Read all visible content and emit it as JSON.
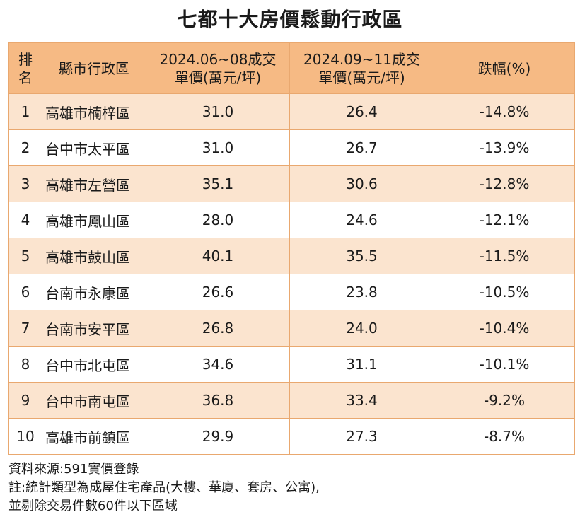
{
  "title": "七都十大房價鬆動行政區",
  "table": {
    "headers": {
      "rank_line1": "排",
      "rank_line2": "名",
      "district": "縣市行政區",
      "period1_line1": "2024.06~08成交",
      "period1_line2": "單價(萬元/坪)",
      "period2_line1": "2024.09~11成交",
      "period2_line2": "單價(萬元/坪)",
      "change": "跌幅(%)"
    },
    "rows": [
      {
        "rank": "1",
        "district": "高雄市楠梓區",
        "price1": "31.0",
        "price2": "26.4",
        "change": "-14.8%"
      },
      {
        "rank": "2",
        "district": "台中市太平區",
        "price1": "31.0",
        "price2": "26.7",
        "change": "-13.9%"
      },
      {
        "rank": "3",
        "district": "高雄市左營區",
        "price1": "35.1",
        "price2": "30.6",
        "change": "-12.8%"
      },
      {
        "rank": "4",
        "district": "高雄市鳳山區",
        "price1": "28.0",
        "price2": "24.6",
        "change": "-12.1%"
      },
      {
        "rank": "5",
        "district": "高雄市鼓山區",
        "price1": "40.1",
        "price2": "35.5",
        "change": "-11.5%"
      },
      {
        "rank": "6",
        "district": "台南市永康區",
        "price1": "26.6",
        "price2": "23.8",
        "change": "-10.5%"
      },
      {
        "rank": "7",
        "district": "台南市安平區",
        "price1": "26.8",
        "price2": "24.0",
        "change": "-10.4%"
      },
      {
        "rank": "8",
        "district": "台中市北屯區",
        "price1": "34.6",
        "price2": "31.1",
        "change": "-10.1%"
      },
      {
        "rank": "9",
        "district": "台中市南屯區",
        "price1": "36.8",
        "price2": "33.4",
        "change": "-9.2%"
      },
      {
        "rank": "10",
        "district": "高雄市前鎮區",
        "price1": "29.9",
        "price2": "27.3",
        "change": "-8.7%"
      }
    ]
  },
  "notes": {
    "source": "資料來源:591實價登錄",
    "note_line1": "註:統計類型為成屋住宅產品(大樓、華廈、套房、公寓),",
    "note_line2": "並剔除交易件數60件以下區域"
  },
  "colors": {
    "header_bg": "#f6ba84",
    "odd_row_bg": "#fbe4cf",
    "even_row_bg": "#ffffff",
    "border": "#e9a86f"
  }
}
